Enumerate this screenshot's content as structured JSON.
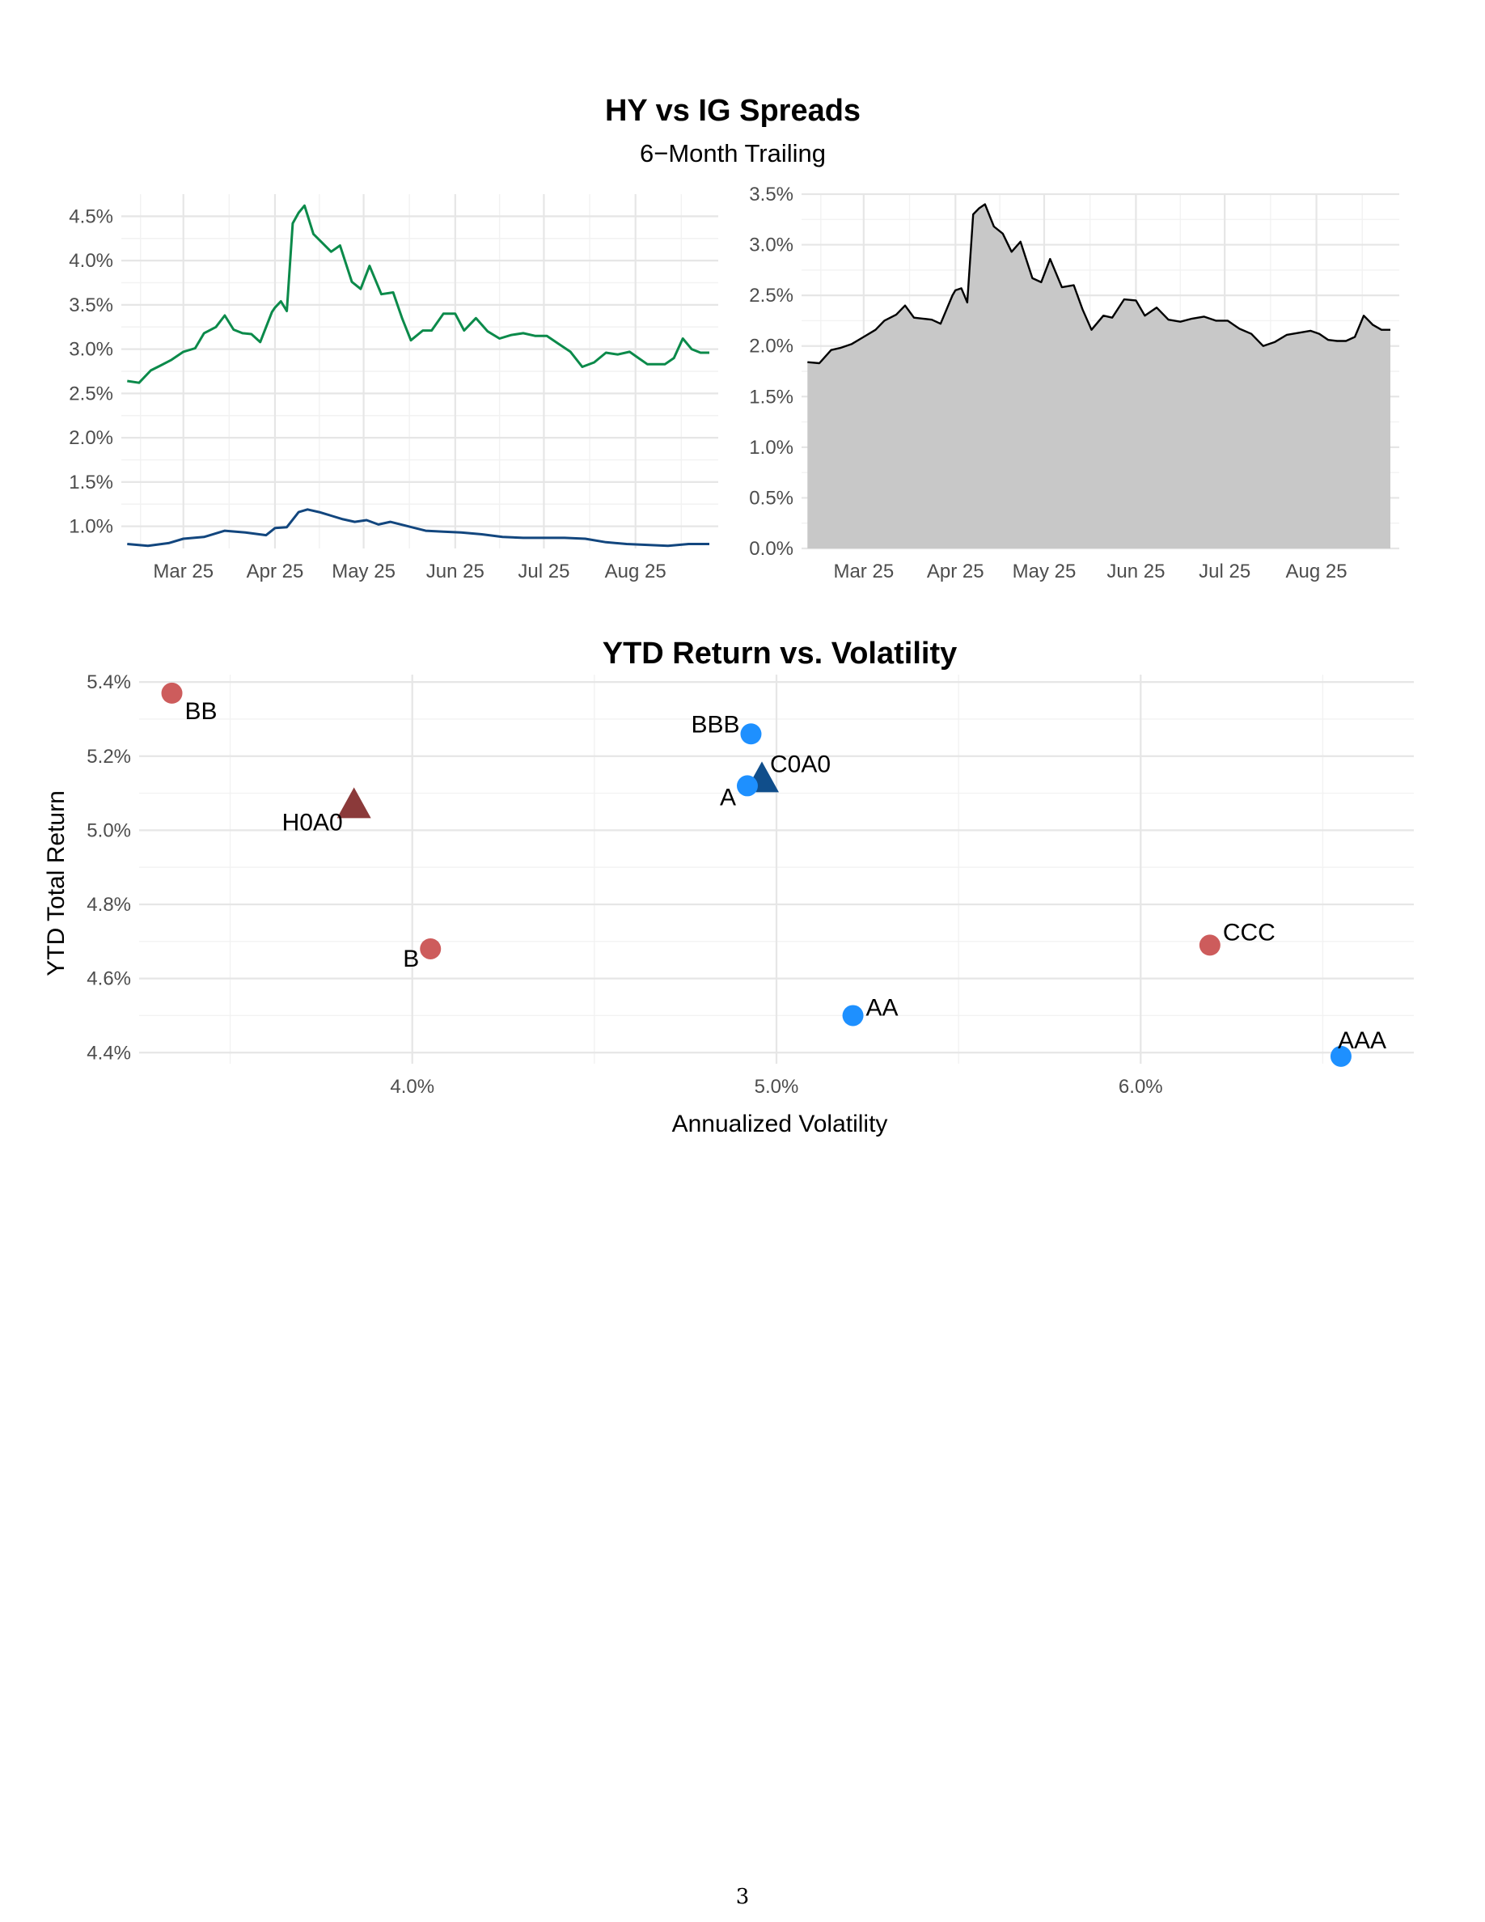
{
  "page_number": "3",
  "chart_data": [
    {
      "type": "line",
      "title": "HY vs IG Spreads",
      "subtitle": "6−Month Trailing",
      "xlabel": "",
      "ylabel": "",
      "x_ticks": [
        "Mar 25",
        "Apr 25",
        "May 25",
        "Jun 25",
        "Jul 25",
        "Aug 25"
      ],
      "x_tick_dates": [
        "2025-03-01",
        "2025-04-01",
        "2025-05-01",
        "2025-06-01",
        "2025-07-01",
        "2025-08-01"
      ],
      "xlim": [
        "2025-02-08",
        "2025-08-29"
      ],
      "y_ticks": [
        "1.0%",
        "1.5%",
        "2.0%",
        "2.5%",
        "3.0%",
        "3.5%",
        "4.0%",
        "4.5%"
      ],
      "ylim": [
        0.75,
        4.75
      ],
      "grid": true,
      "series": [
        {
          "color": "#0b8a4a",
          "x": [
            "2025-02-10",
            "2025-02-14",
            "2025-02-18",
            "2025-02-21",
            "2025-02-25",
            "2025-03-01",
            "2025-03-05",
            "2025-03-08",
            "2025-03-12",
            "2025-03-15",
            "2025-03-18",
            "2025-03-21",
            "2025-03-24",
            "2025-03-27",
            "2025-03-31",
            "2025-04-01",
            "2025-04-03",
            "2025-04-05",
            "2025-04-07",
            "2025-04-09",
            "2025-04-11",
            "2025-04-14",
            "2025-04-17",
            "2025-04-20",
            "2025-04-23",
            "2025-04-27",
            "2025-04-30",
            "2025-05-03",
            "2025-05-07",
            "2025-05-11",
            "2025-05-14",
            "2025-05-17",
            "2025-05-21",
            "2025-05-24",
            "2025-05-28",
            "2025-06-01",
            "2025-06-04",
            "2025-06-08",
            "2025-06-12",
            "2025-06-16",
            "2025-06-20",
            "2025-06-24",
            "2025-06-28",
            "2025-07-02",
            "2025-07-06",
            "2025-07-10",
            "2025-07-14",
            "2025-07-18",
            "2025-07-22",
            "2025-07-26",
            "2025-07-30",
            "2025-08-02",
            "2025-08-05",
            "2025-08-08",
            "2025-08-11",
            "2025-08-14",
            "2025-08-17",
            "2025-08-20",
            "2025-08-23",
            "2025-08-26"
          ],
          "y": [
            2.64,
            2.62,
            2.76,
            2.81,
            2.88,
            2.97,
            3.01,
            3.18,
            3.25,
            3.38,
            3.22,
            3.18,
            3.17,
            3.08,
            3.42,
            3.47,
            3.54,
            3.43,
            4.42,
            4.54,
            4.62,
            4.3,
            4.2,
            4.1,
            4.17,
            3.76,
            3.68,
            3.94,
            3.62,
            3.64,
            3.35,
            3.1,
            3.21,
            3.21,
            3.4,
            3.4,
            3.21,
            3.35,
            3.2,
            3.12,
            3.16,
            3.18,
            3.15,
            3.15,
            3.06,
            2.97,
            2.8,
            2.85,
            2.96,
            2.94,
            2.97,
            2.9,
            2.83,
            2.83,
            2.83,
            2.9,
            3.12,
            3.0,
            2.96,
            2.96
          ]
        },
        {
          "color": "#12467e",
          "x": [
            "2025-02-10",
            "2025-02-17",
            "2025-02-24",
            "2025-03-01",
            "2025-03-08",
            "2025-03-15",
            "2025-03-22",
            "2025-03-29",
            "2025-04-01",
            "2025-04-05",
            "2025-04-09",
            "2025-04-12",
            "2025-04-16",
            "2025-04-20",
            "2025-04-24",
            "2025-04-28",
            "2025-05-02",
            "2025-05-06",
            "2025-05-10",
            "2025-05-16",
            "2025-05-22",
            "2025-05-28",
            "2025-06-03",
            "2025-06-10",
            "2025-06-17",
            "2025-06-24",
            "2025-07-01",
            "2025-07-08",
            "2025-07-15",
            "2025-07-22",
            "2025-07-29",
            "2025-08-05",
            "2025-08-12",
            "2025-08-19",
            "2025-08-26"
          ],
          "y": [
            0.8,
            0.78,
            0.81,
            0.86,
            0.88,
            0.95,
            0.93,
            0.9,
            0.98,
            0.99,
            1.16,
            1.19,
            1.16,
            1.12,
            1.08,
            1.05,
            1.07,
            1.02,
            1.05,
            1.0,
            0.95,
            0.94,
            0.93,
            0.91,
            0.88,
            0.87,
            0.87,
            0.87,
            0.86,
            0.82,
            0.8,
            0.79,
            0.78,
            0.8,
            0.8
          ]
        }
      ]
    },
    {
      "type": "area",
      "title": "",
      "xlabel": "",
      "ylabel": "",
      "x_ticks": [
        "Mar 25",
        "Apr 25",
        "May 25",
        "Jun 25",
        "Jul 25",
        "Aug 25"
      ],
      "x_tick_dates": [
        "2025-03-01",
        "2025-04-01",
        "2025-05-01",
        "2025-06-01",
        "2025-07-01",
        "2025-08-01"
      ],
      "xlim": [
        "2025-02-08",
        "2025-08-29"
      ],
      "y_ticks": [
        "0.0%",
        "0.5%",
        "1.0%",
        "1.5%",
        "2.0%",
        "2.5%",
        "3.0%",
        "3.5%"
      ],
      "ylim": [
        0,
        3.5
      ],
      "grid": true,
      "fill_color": "#c8c8c8",
      "line_color": "#000000",
      "series": [
        {
          "x": [
            "2025-02-10",
            "2025-02-14",
            "2025-02-18",
            "2025-02-21",
            "2025-02-25",
            "2025-03-01",
            "2025-03-05",
            "2025-03-08",
            "2025-03-12",
            "2025-03-15",
            "2025-03-18",
            "2025-03-21",
            "2025-03-24",
            "2025-03-27",
            "2025-03-31",
            "2025-04-01",
            "2025-04-03",
            "2025-04-05",
            "2025-04-07",
            "2025-04-09",
            "2025-04-11",
            "2025-04-14",
            "2025-04-17",
            "2025-04-20",
            "2025-04-23",
            "2025-04-27",
            "2025-04-30",
            "2025-05-03",
            "2025-05-07",
            "2025-05-11",
            "2025-05-14",
            "2025-05-17",
            "2025-05-21",
            "2025-05-24",
            "2025-05-28",
            "2025-06-01",
            "2025-06-04",
            "2025-06-08",
            "2025-06-12",
            "2025-06-16",
            "2025-06-20",
            "2025-06-24",
            "2025-06-28",
            "2025-07-02",
            "2025-07-06",
            "2025-07-10",
            "2025-07-14",
            "2025-07-18",
            "2025-07-22",
            "2025-07-26",
            "2025-07-30",
            "2025-08-02",
            "2025-08-05",
            "2025-08-08",
            "2025-08-11",
            "2025-08-14",
            "2025-08-17",
            "2025-08-20",
            "2025-08-23",
            "2025-08-26"
          ],
          "y": [
            1.84,
            1.83,
            1.96,
            1.98,
            2.02,
            2.09,
            2.16,
            2.25,
            2.31,
            2.4,
            2.28,
            2.27,
            2.26,
            2.22,
            2.5,
            2.55,
            2.57,
            2.43,
            3.3,
            3.36,
            3.4,
            3.18,
            3.11,
            2.93,
            3.03,
            2.67,
            2.63,
            2.86,
            2.58,
            2.6,
            2.36,
            2.16,
            2.3,
            2.28,
            2.46,
            2.45,
            2.3,
            2.38,
            2.26,
            2.24,
            2.27,
            2.29,
            2.25,
            2.25,
            2.17,
            2.12,
            2.0,
            2.04,
            2.11,
            2.13,
            2.15,
            2.12,
            2.06,
            2.05,
            2.05,
            2.09,
            2.3,
            2.21,
            2.16,
            2.16
          ]
        }
      ]
    },
    {
      "type": "scatter",
      "title": "YTD Return vs. Volatility",
      "xlabel": "Annualized Volatility",
      "ylabel": "YTD Total Return",
      "x_ticks": [
        "4.0%",
        "5.0%",
        "6.0%"
      ],
      "y_ticks": [
        "4.4%",
        "4.6%",
        "4.8%",
        "5.0%",
        "5.2%",
        "5.4%"
      ],
      "xlim": [
        3.25,
        6.75
      ],
      "ylim": [
        4.37,
        5.42
      ],
      "grid": true,
      "points": [
        {
          "label": "BB",
          "x": 3.34,
          "y": 5.37,
          "shape": "circle",
          "color": "#cd5c5c"
        },
        {
          "label": "BBB",
          "x": 4.93,
          "y": 5.26,
          "shape": "circle",
          "color": "#1e90ff"
        },
        {
          "label": "C0A0",
          "x": 4.96,
          "y": 5.14,
          "shape": "triangle",
          "color": "#104e8b"
        },
        {
          "label": "A",
          "x": 4.92,
          "y": 5.12,
          "shape": "circle",
          "color": "#1e90ff"
        },
        {
          "label": "H0A0",
          "x": 3.84,
          "y": 5.07,
          "shape": "triangle",
          "color": "#8b3a3a"
        },
        {
          "label": "B",
          "x": 4.05,
          "y": 4.68,
          "shape": "circle",
          "color": "#cd5c5c"
        },
        {
          "label": "CCC",
          "x": 6.19,
          "y": 4.69,
          "shape": "circle",
          "color": "#cd5c5c"
        },
        {
          "label": "AA",
          "x": 5.21,
          "y": 4.5,
          "shape": "circle",
          "color": "#1e90ff"
        },
        {
          "label": "AAA",
          "x": 6.55,
          "y": 4.39,
          "shape": "circle",
          "color": "#1e90ff"
        }
      ]
    }
  ]
}
